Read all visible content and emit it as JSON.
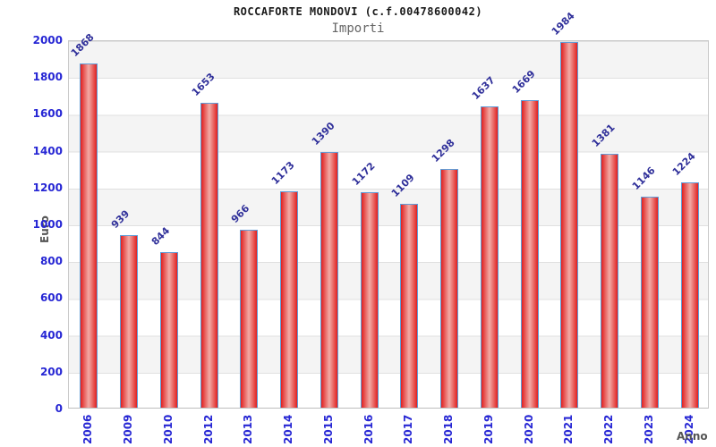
{
  "header": {
    "title": "ROCCAFORTE MONDOVI (c.f.00478600042)",
    "subtitle": "Importi"
  },
  "chart_data": {
    "type": "bar",
    "title": "ROCCAFORTE MONDOVI (c.f.00478600042)",
    "subtitle": "Importi",
    "xlabel": "Anno",
    "ylabel": "Euro",
    "categories": [
      "2006",
      "2009",
      "2010",
      "2012",
      "2013",
      "2014",
      "2015",
      "2016",
      "2017",
      "2018",
      "2019",
      "2020",
      "2021",
      "2022",
      "2023",
      "2024"
    ],
    "values": [
      1868,
      939,
      844,
      1653,
      966,
      1173,
      1390,
      1172,
      1109,
      1298,
      1637,
      1669,
      1984,
      1381,
      1146,
      1224
    ],
    "ylim": [
      0,
      2000
    ],
    "yticks": [
      0,
      200,
      400,
      600,
      800,
      1000,
      1200,
      1400,
      1600,
      1800,
      2000
    ],
    "legend": null,
    "grid": "alternating-horizontal-bands",
    "colors": {
      "bar_edge": "#e02020",
      "bar_center": "#f2aba6",
      "bar_border": "#5f9dd8",
      "axis_tick_label": "#2626d4",
      "value_label": "#30309a",
      "band_gray": "#f4f4f4",
      "gridline": "#e0e0e0",
      "plot_border": "#c9c9c9",
      "axis_label": "#555555"
    }
  }
}
